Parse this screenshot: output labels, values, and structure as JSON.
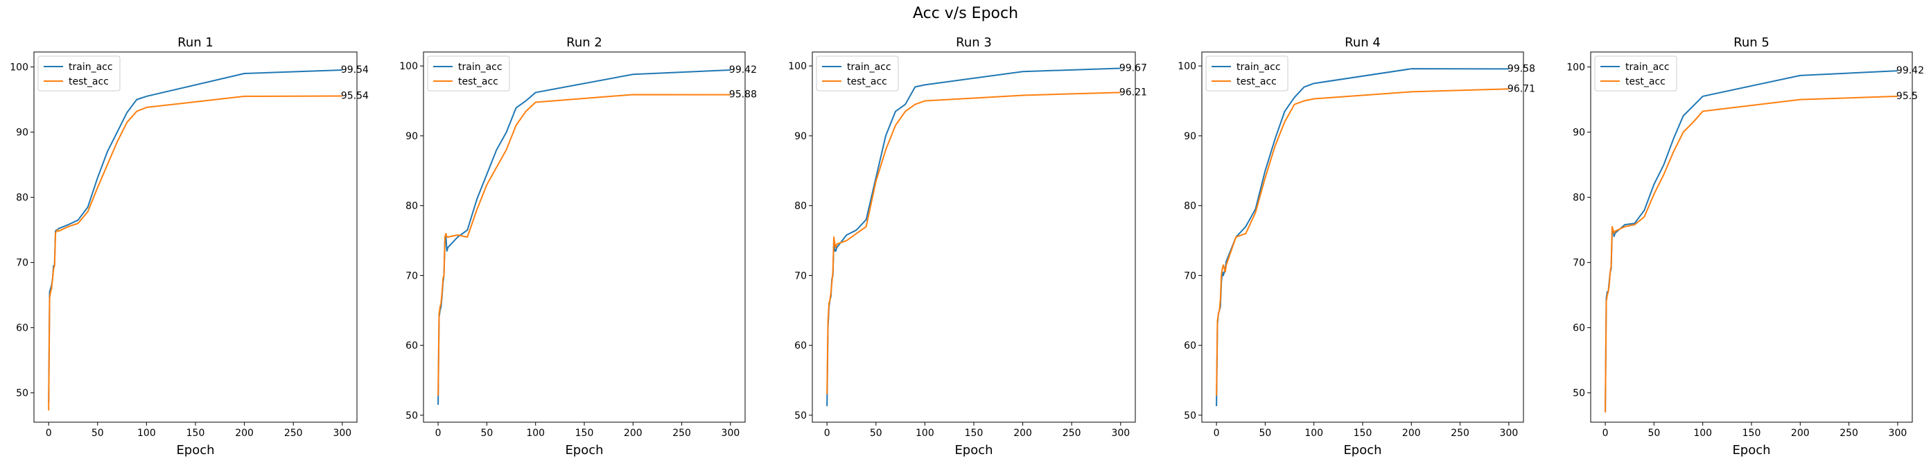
{
  "figure": {
    "suptitle": "Acc v/s Epoch"
  },
  "colors": {
    "train_acc": "#1f77b4",
    "test_acc": "#ff7f0e"
  },
  "chart_data": [
    {
      "type": "line",
      "title": "Run 1",
      "xlabel": "Epoch",
      "ylabel": "",
      "xlim": [
        -15,
        315
      ],
      "ylim": [
        45.5,
        102.3
      ],
      "xticks": [
        0,
        50,
        100,
        150,
        200,
        250,
        300
      ],
      "yticks": [
        50,
        60,
        70,
        80,
        90,
        100
      ],
      "legend": "upper-left",
      "series": [
        {
          "name": "train_acc",
          "x": [
            0,
            1,
            2,
            3,
            4,
            5,
            6,
            7,
            8,
            9,
            10,
            20,
            30,
            40,
            50,
            60,
            70,
            80,
            90,
            100,
            200,
            300
          ],
          "y": [
            48.5,
            65.5,
            66.0,
            66.5,
            67.5,
            69.5,
            69.5,
            74.8,
            75.0,
            75.0,
            75.2,
            75.8,
            76.5,
            78.5,
            83.0,
            87.0,
            90.0,
            93.0,
            95.0,
            95.5,
            99.0,
            99.54
          ],
          "end_label": "99.54"
        },
        {
          "name": "test_acc",
          "x": [
            0,
            1,
            2,
            3,
            4,
            5,
            6,
            7,
            8,
            9,
            10,
            20,
            30,
            40,
            50,
            60,
            70,
            80,
            90,
            100,
            200,
            300
          ],
          "y": [
            47.3,
            64.5,
            65.5,
            66.0,
            67.5,
            69.0,
            69.5,
            74.5,
            74.8,
            75.0,
            74.8,
            75.5,
            76.0,
            77.8,
            81.5,
            85.0,
            88.5,
            91.5,
            93.2,
            93.8,
            95.5,
            95.54
          ],
          "end_label": "95.54"
        }
      ]
    },
    {
      "type": "line",
      "title": "Run 2",
      "xlabel": "Epoch",
      "ylabel": "",
      "xlim": [
        -15,
        315
      ],
      "ylim": [
        49.0,
        102.0
      ],
      "xticks": [
        0,
        50,
        100,
        150,
        200,
        250,
        300
      ],
      "yticks": [
        50,
        60,
        70,
        80,
        90,
        100
      ],
      "legend": "upper-left",
      "series": [
        {
          "name": "train_acc",
          "x": [
            0,
            1,
            2,
            3,
            4,
            5,
            6,
            7,
            8,
            9,
            10,
            20,
            30,
            40,
            50,
            60,
            70,
            80,
            90,
            100,
            200,
            300
          ],
          "y": [
            51.5,
            64.0,
            65.0,
            65.5,
            67.0,
            69.0,
            70.0,
            75.0,
            75.5,
            73.5,
            74.0,
            75.5,
            76.5,
            81.0,
            84.5,
            88.0,
            90.5,
            94.0,
            95.0,
            96.2,
            98.8,
            99.42
          ],
          "end_label": "99.42"
        },
        {
          "name": "test_acc",
          "x": [
            0,
            1,
            2,
            3,
            4,
            5,
            6,
            7,
            8,
            9,
            10,
            20,
            30,
            40,
            50,
            60,
            70,
            80,
            90,
            100,
            200,
            300
          ],
          "y": [
            52.8,
            64.5,
            65.5,
            66.0,
            67.5,
            69.5,
            70.0,
            75.5,
            76.0,
            75.5,
            75.5,
            75.8,
            75.5,
            79.5,
            83.0,
            85.5,
            88.0,
            91.5,
            93.5,
            94.8,
            95.9,
            95.88
          ],
          "end_label": "95.88"
        }
      ]
    },
    {
      "type": "line",
      "title": "Run 3",
      "xlabel": "Epoch",
      "ylabel": "",
      "xlim": [
        -15,
        315
      ],
      "ylim": [
        49.0,
        102.0
      ],
      "xticks": [
        0,
        50,
        100,
        150,
        200,
        250,
        300
      ],
      "yticks": [
        50,
        60,
        70,
        80,
        90,
        100
      ],
      "legend": "upper-left",
      "series": [
        {
          "name": "train_acc",
          "x": [
            0,
            1,
            2,
            3,
            4,
            5,
            6,
            7,
            8,
            9,
            10,
            20,
            30,
            40,
            50,
            60,
            70,
            80,
            90,
            100,
            200,
            300
          ],
          "y": [
            51.3,
            62.5,
            65.5,
            66.5,
            67.0,
            69.5,
            70.0,
            75.0,
            73.5,
            73.5,
            74.0,
            75.8,
            76.5,
            78.0,
            84.0,
            90.0,
            93.5,
            94.5,
            97.0,
            97.3,
            99.2,
            99.67
          ],
          "end_label": "99.67"
        },
        {
          "name": "test_acc",
          "x": [
            0,
            1,
            2,
            3,
            4,
            5,
            6,
            7,
            8,
            9,
            10,
            20,
            30,
            40,
            50,
            60,
            70,
            80,
            90,
            100,
            200,
            300
          ],
          "y": [
            53.0,
            63.5,
            66.0,
            66.5,
            67.5,
            69.0,
            70.5,
            75.5,
            74.5,
            74.0,
            74.5,
            75.0,
            76.0,
            77.0,
            83.5,
            88.0,
            91.5,
            93.5,
            94.5,
            95.0,
            95.8,
            96.21
          ],
          "end_label": "96.21"
        }
      ]
    },
    {
      "type": "line",
      "title": "Run 4",
      "xlabel": "Epoch",
      "ylabel": "",
      "xlim": [
        -15,
        315
      ],
      "ylim": [
        49.0,
        102.0
      ],
      "xticks": [
        0,
        50,
        100,
        150,
        200,
        250,
        300
      ],
      "yticks": [
        50,
        60,
        70,
        80,
        90,
        100
      ],
      "legend": "upper-left",
      "series": [
        {
          "name": "train_acc",
          "x": [
            0,
            1,
            2,
            3,
            4,
            5,
            6,
            7,
            8,
            9,
            10,
            20,
            30,
            40,
            50,
            60,
            70,
            80,
            90,
            100,
            200,
            300
          ],
          "y": [
            51.3,
            63.0,
            64.5,
            65.0,
            65.5,
            69.0,
            70.5,
            70.0,
            70.5,
            71.0,
            72.0,
            75.5,
            77.0,
            79.5,
            85.0,
            89.5,
            93.5,
            95.5,
            97.0,
            97.5,
            99.6,
            99.58
          ],
          "end_label": "99.58"
        },
        {
          "name": "test_acc",
          "x": [
            0,
            1,
            2,
            3,
            4,
            5,
            6,
            7,
            8,
            9,
            10,
            20,
            30,
            40,
            50,
            60,
            70,
            80,
            90,
            100,
            200,
            300
          ],
          "y": [
            52.8,
            63.5,
            64.5,
            65.0,
            66.5,
            70.0,
            71.0,
            71.5,
            71.0,
            70.5,
            71.5,
            75.5,
            76.0,
            79.0,
            84.0,
            88.5,
            92.0,
            94.5,
            95.0,
            95.3,
            96.3,
            96.71
          ],
          "end_label": "96.71"
        }
      ]
    },
    {
      "type": "line",
      "title": "Run 5",
      "xlabel": "Epoch",
      "ylabel": "",
      "xlim": [
        -15,
        315
      ],
      "ylim": [
        45.5,
        102.3
      ],
      "xticks": [
        0,
        50,
        100,
        150,
        200,
        250,
        300
      ],
      "yticks": [
        50,
        60,
        70,
        80,
        90,
        100
      ],
      "legend": "upper-left",
      "series": [
        {
          "name": "train_acc",
          "x": [
            0,
            1,
            2,
            3,
            4,
            5,
            6,
            7,
            8,
            9,
            10,
            20,
            30,
            40,
            50,
            60,
            70,
            80,
            90,
            100,
            200,
            300
          ],
          "y": [
            47.0,
            64.5,
            65.5,
            65.5,
            67.0,
            68.5,
            69.0,
            74.5,
            75.0,
            74.0,
            74.5,
            75.8,
            76.0,
            78.0,
            82.0,
            85.0,
            89.0,
            92.5,
            94.0,
            95.5,
            98.7,
            99.42
          ],
          "end_label": "99.42"
        },
        {
          "name": "test_acc",
          "x": [
            0,
            1,
            2,
            3,
            4,
            5,
            6,
            7,
            8,
            9,
            10,
            20,
            30,
            40,
            50,
            60,
            70,
            80,
            90,
            100,
            200,
            300
          ],
          "y": [
            47.0,
            64.0,
            65.0,
            65.5,
            66.5,
            68.5,
            69.5,
            75.5,
            75.0,
            74.5,
            74.8,
            75.5,
            75.8,
            77.0,
            80.5,
            83.5,
            87.0,
            90.0,
            91.5,
            93.2,
            95.0,
            95.5
          ],
          "end_label": "95.5"
        }
      ]
    }
  ]
}
